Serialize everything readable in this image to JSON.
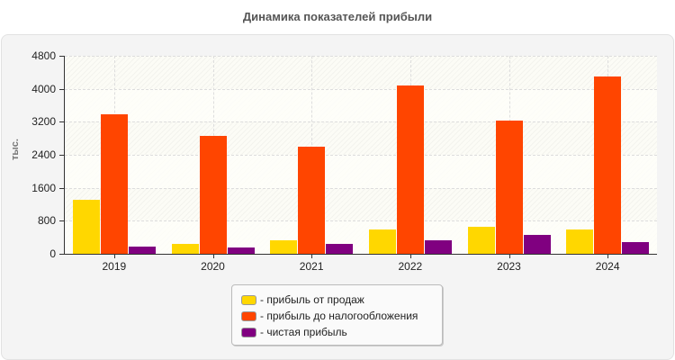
{
  "title": "Динамика показателей прибыли",
  "chart_data": {
    "type": "bar",
    "title": "Динамика показателей прибыли",
    "xlabel": "",
    "ylabel": "тыс.",
    "ylim": [
      0,
      4800
    ],
    "yticks": [
      0,
      800,
      1600,
      2400,
      3200,
      4000,
      4800
    ],
    "grid": true,
    "legend_position": "bottom",
    "categories": [
      "2019",
      "2020",
      "2021",
      "2022",
      "2023",
      "2024"
    ],
    "series": [
      {
        "name": "прибыль от продаж",
        "color": "#ffd700",
        "values": [
          1300,
          250,
          320,
          590,
          660,
          580
        ]
      },
      {
        "name": "прибыль до налогообложения",
        "color": "#ff4500",
        "values": [
          3380,
          2850,
          2600,
          4070,
          3230,
          4300
        ]
      },
      {
        "name": "чистая прибыль",
        "color": "#800080",
        "values": [
          185,
          160,
          250,
          320,
          450,
          275
        ]
      }
    ]
  },
  "legend": [
    {
      "label": "- прибыль от продаж",
      "color": "#ffd700"
    },
    {
      "label": "- прибыль до налогообложения",
      "color": "#ff4500"
    },
    {
      "label": "- чистая прибыль",
      "color": "#800080"
    }
  ]
}
